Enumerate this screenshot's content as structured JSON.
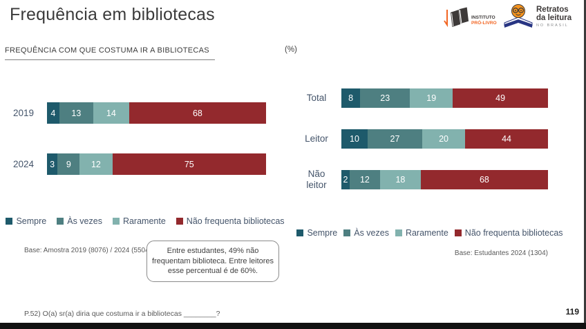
{
  "slide": {
    "title": "Frequência em bibliotecas",
    "subtitle": "FREQUÊNCIA COM QUE COSTUMA IR A BIBLIOTECAS",
    "unit_label": "(%)",
    "footnote": "P.52) O(a) sr(a) diria que costuma ir a bibliotecas ________?",
    "page_number": "119"
  },
  "logos": {
    "instituto_pro_livro": {
      "line1": "INSTITUTO",
      "line2": "PRÓ-LIVRO"
    },
    "retratos_da_leitura": {
      "line1": "Retratos",
      "line2": "da leitura",
      "line3": "NO BRASIL"
    }
  },
  "colors": {
    "sempre": "#1e5a6b",
    "as_vezes": "#4e7f81",
    "raramente": "#82b2ae",
    "nao_frequenta_bibliotecas": "#93292d",
    "category_label": "#44546a"
  },
  "callout": "Entre estudantes, 49% não frequentam biblioteca. Entre leitores esse percentual é de 60%.",
  "chart_data": [
    {
      "type": "bar",
      "subtype": "horizontal-stacked-100",
      "title": "Frequência com que costuma ir a bibliotecas (%) — por ano",
      "categories": [
        "2019",
        "2024"
      ],
      "series": [
        {
          "name": "Sempre",
          "color": "#1e5a6b",
          "values": [
            4,
            3
          ]
        },
        {
          "name": "Às vezes",
          "color": "#4e7f81",
          "values": [
            13,
            9
          ]
        },
        {
          "name": "Raramente",
          "color": "#82b2ae",
          "values": [
            14,
            12
          ]
        },
        {
          "name": "Não frequenta bibliotecas",
          "color": "#93292d",
          "values": [
            68,
            75
          ]
        }
      ],
      "legend": [
        "Sempre",
        "Às vezes",
        "Raramente",
        "Não frequenta bibliotecas"
      ],
      "legend_position": "bottom",
      "base_note": "Base: Amostra 2019 (8076) / 2024 (5504)"
    },
    {
      "type": "bar",
      "subtype": "horizontal-stacked-100",
      "title": "Frequência com que costuma ir a bibliotecas (%) — estudantes 2024 por perfil",
      "categories": [
        "Total",
        "Leitor",
        "Não leitor"
      ],
      "series": [
        {
          "name": "Sempre",
          "color": "#1e5a6b",
          "values": [
            8,
            10,
            2
          ]
        },
        {
          "name": "Às vezes",
          "color": "#4e7f81",
          "values": [
            23,
            27,
            12
          ]
        },
        {
          "name": "Raramente",
          "color": "#82b2ae",
          "values": [
            19,
            20,
            18
          ]
        },
        {
          "name": "Não frequenta bibliotecas",
          "color": "#93292d",
          "values": [
            49,
            44,
            68
          ]
        }
      ],
      "legend": [
        "Sempre",
        "Às vezes",
        "Raramente",
        "Não frequenta bibliotecas"
      ],
      "legend_position": "bottom",
      "base_note": "Base: Estudantes 2024 (1304)"
    }
  ]
}
